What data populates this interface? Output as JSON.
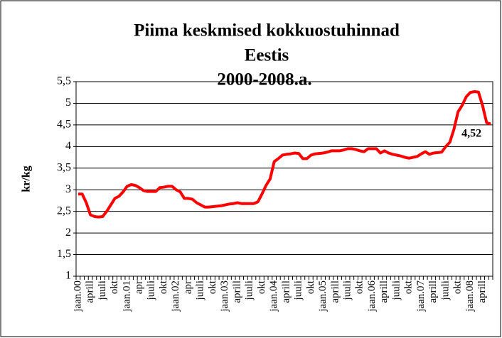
{
  "chart_data": {
    "type": "line",
    "title": [
      "Piima keskmised kokkuostuhinnad",
      "Eestis",
      "2000-2008.a."
    ],
    "y_label": "kr/kg",
    "categories": [
      "jaan.00",
      null,
      null,
      "aprill",
      null,
      null,
      "juuli",
      null,
      null,
      "okt",
      null,
      null,
      "jaan.01",
      null,
      null,
      "apr",
      null,
      null,
      "juuli",
      null,
      null,
      "okt",
      null,
      null,
      "jaan.02",
      null,
      null,
      "apr",
      null,
      null,
      "juuli",
      null,
      null,
      "okt",
      null,
      null,
      "jaan.03",
      null,
      null,
      "aprill",
      null,
      null,
      "juuli",
      null,
      null,
      "okt",
      null,
      null,
      "jaan.04",
      null,
      null,
      "aprill",
      null,
      null,
      "juuli",
      null,
      null,
      "okt",
      null,
      null,
      "jaan.05",
      null,
      null,
      "aprill",
      null,
      null,
      "juuli",
      null,
      null,
      "okt",
      null,
      null,
      "jaan.06",
      null,
      null,
      "aprill",
      null,
      null,
      "juuli",
      null,
      null,
      "okt",
      null,
      null,
      "jaan.07",
      null,
      null,
      "aprill",
      null,
      null,
      "juuli",
      null,
      null,
      "okt",
      null,
      null,
      "jaan.08",
      null,
      null,
      "aprill",
      null,
      null
    ],
    "values": [
      2.9,
      2.9,
      2.7,
      2.42,
      2.38,
      2.37,
      2.38,
      2.5,
      2.65,
      2.8,
      2.85,
      2.95,
      3.08,
      3.12,
      3.1,
      3.05,
      2.98,
      2.96,
      2.96,
      2.96,
      3.05,
      3.06,
      3.08,
      3.08,
      3.0,
      2.95,
      2.8,
      2.8,
      2.78,
      2.7,
      2.65,
      2.6,
      2.6,
      2.61,
      2.62,
      2.63,
      2.65,
      2.67,
      2.68,
      2.7,
      2.68,
      2.68,
      2.68,
      2.68,
      2.72,
      2.9,
      3.1,
      3.25,
      3.65,
      3.72,
      3.8,
      3.82,
      3.83,
      3.85,
      3.84,
      3.72,
      3.72,
      3.8,
      3.83,
      3.84,
      3.85,
      3.87,
      3.9,
      3.9,
      3.9,
      3.92,
      3.95,
      3.95,
      3.93,
      3.9,
      3.88,
      3.95,
      3.95,
      3.95,
      3.85,
      3.9,
      3.85,
      3.82,
      3.8,
      3.78,
      3.75,
      3.73,
      3.75,
      3.77,
      3.83,
      3.88,
      3.82,
      3.85,
      3.86,
      3.87,
      4.0,
      4.1,
      4.4,
      4.8,
      4.95,
      5.15,
      5.25,
      5.27,
      5.26,
      4.95,
      4.55,
      4.52
    ],
    "value_labels": [
      null,
      null,
      null,
      null,
      null,
      null,
      null,
      null,
      null,
      null,
      null,
      null,
      null,
      null,
      null,
      null,
      null,
      null,
      null,
      null,
      null,
      null,
      null,
      null,
      null,
      null,
      null,
      null,
      null,
      null,
      null,
      null,
      null,
      null,
      null,
      null,
      null,
      null,
      null,
      null,
      null,
      null,
      null,
      null,
      null,
      null,
      null,
      null,
      null,
      null,
      null,
      null,
      null,
      null,
      null,
      null,
      null,
      null,
      null,
      null,
      null,
      null,
      null,
      null,
      null,
      null,
      null,
      null,
      null,
      null,
      null,
      null,
      null,
      null,
      null,
      null,
      null,
      null,
      null,
      null,
      null,
      null,
      null,
      null,
      null,
      null,
      null,
      null,
      null,
      null,
      null,
      null,
      null,
      null,
      null,
      null,
      null,
      null,
      null,
      null,
      null,
      "4,52"
    ],
    "color": "#ff0000",
    "ylim": [
      1,
      5.5
    ],
    "yticks": [
      1,
      {
        "value": 1.5,
        "label": "1,5"
      },
      2,
      {
        "value": 2.5,
        "label": "2,5"
      },
      3,
      {
        "value": 3.5,
        "label": "3,5"
      },
      4,
      {
        "value": 4.5,
        "label": "4,5"
      },
      5,
      {
        "value": 5.5,
        "label": "5,5"
      }
    ],
    "grid": true
  }
}
